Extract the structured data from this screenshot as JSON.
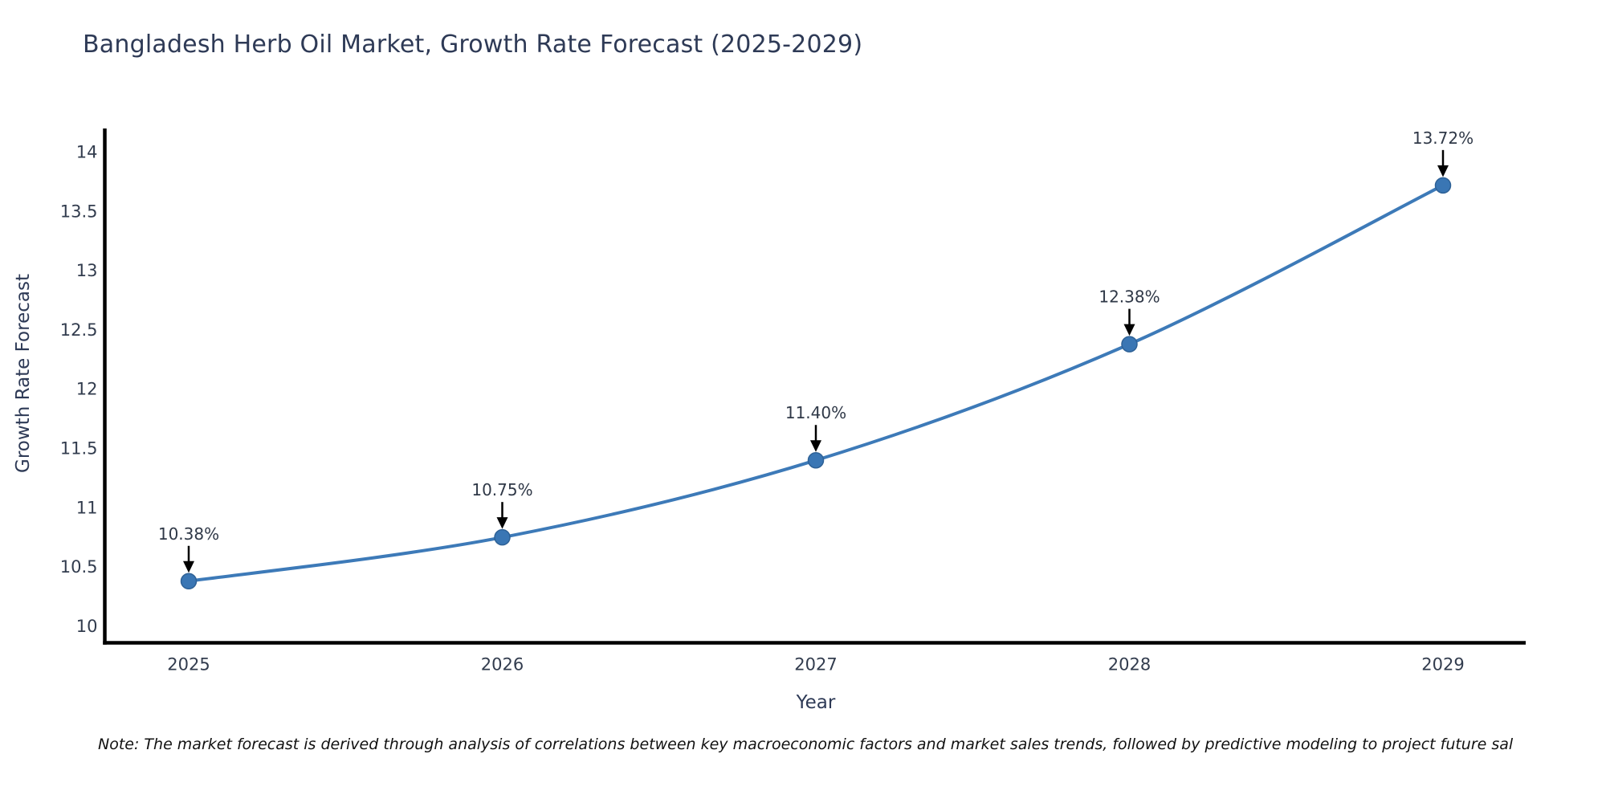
{
  "chart_data": {
    "type": "line",
    "title": "Bangladesh Herb Oil Market, Growth Rate Forecast (2025-2029)",
    "xlabel": "Year",
    "ylabel": "Growth Rate Forecast",
    "categories": [
      "2025",
      "2026",
      "2027",
      "2028",
      "2029"
    ],
    "series": [
      {
        "name": "Growth Rate Forecast",
        "values": [
          10.38,
          10.75,
          11.4,
          12.38,
          13.72
        ]
      }
    ],
    "point_labels": [
      "10.38%",
      "10.75%",
      "11.40%",
      "12.38%",
      "13.72%"
    ],
    "line_shape": "spline",
    "grid": false,
    "legend": "none",
    "ylim": [
      9.86,
      14.2
    ],
    "yticks": [
      10,
      10.5,
      11,
      11.5,
      12,
      12.5,
      13,
      13.5,
      14
    ],
    "xticks": [
      "2025",
      "2026",
      "2027",
      "2028",
      "2029"
    ],
    "annotations_have_arrows": true,
    "colors": {
      "line": "#3d7ab8",
      "marker_fill": "#3a76b4",
      "marker_edge": "#2e6196",
      "axis_line": "#000000",
      "arrow": "#000000",
      "tick_text": "#323c4e",
      "title_text": "#2e3a56"
    }
  },
  "note": {
    "text": "Note: The market forecast is derived through analysis of correlations between key macroeconomic factors and market sales trends, followed by predictive modeling to project future sal"
  }
}
